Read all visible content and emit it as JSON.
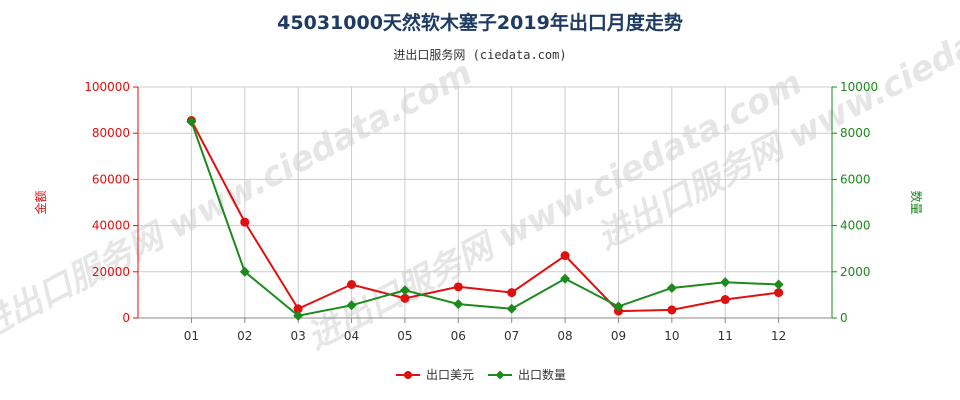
{
  "title": "45031000天然软木塞子2019年出口月度走势",
  "subtitle": "进出口服务网 (ciedata.com)",
  "watermark": "进出口服务网 www.ciedata.com",
  "colors": {
    "series_amount": "#e01010",
    "series_quantity": "#1d8a1d",
    "grid": "#cccccc"
  },
  "chart_data": {
    "type": "line",
    "categories": [
      "01",
      "02",
      "03",
      "04",
      "05",
      "06",
      "07",
      "08",
      "09",
      "10",
      "11",
      "12"
    ],
    "y_left": {
      "label": "金额",
      "min": 0,
      "max": 100000,
      "ticks": [
        "0",
        "20000",
        "40000",
        "60000",
        "80000",
        "100000"
      ]
    },
    "y_right": {
      "label": "数量",
      "min": 0,
      "max": 10000,
      "ticks": [
        "0",
        "2000",
        "4000",
        "6000",
        "8000",
        "10000"
      ]
    },
    "grid": true,
    "legend_position": "bottom",
    "series": [
      {
        "name": "出口美元",
        "axis": "left",
        "values": [
          85500,
          41500,
          4000,
          14500,
          8500,
          13500,
          11000,
          27000,
          3000,
          3500,
          8000,
          11000
        ]
      },
      {
        "name": "出口数量",
        "axis": "right",
        "values": [
          8500,
          2000,
          100,
          550,
          1200,
          600,
          400,
          1700,
          500,
          1300,
          1550,
          1450
        ]
      }
    ]
  }
}
